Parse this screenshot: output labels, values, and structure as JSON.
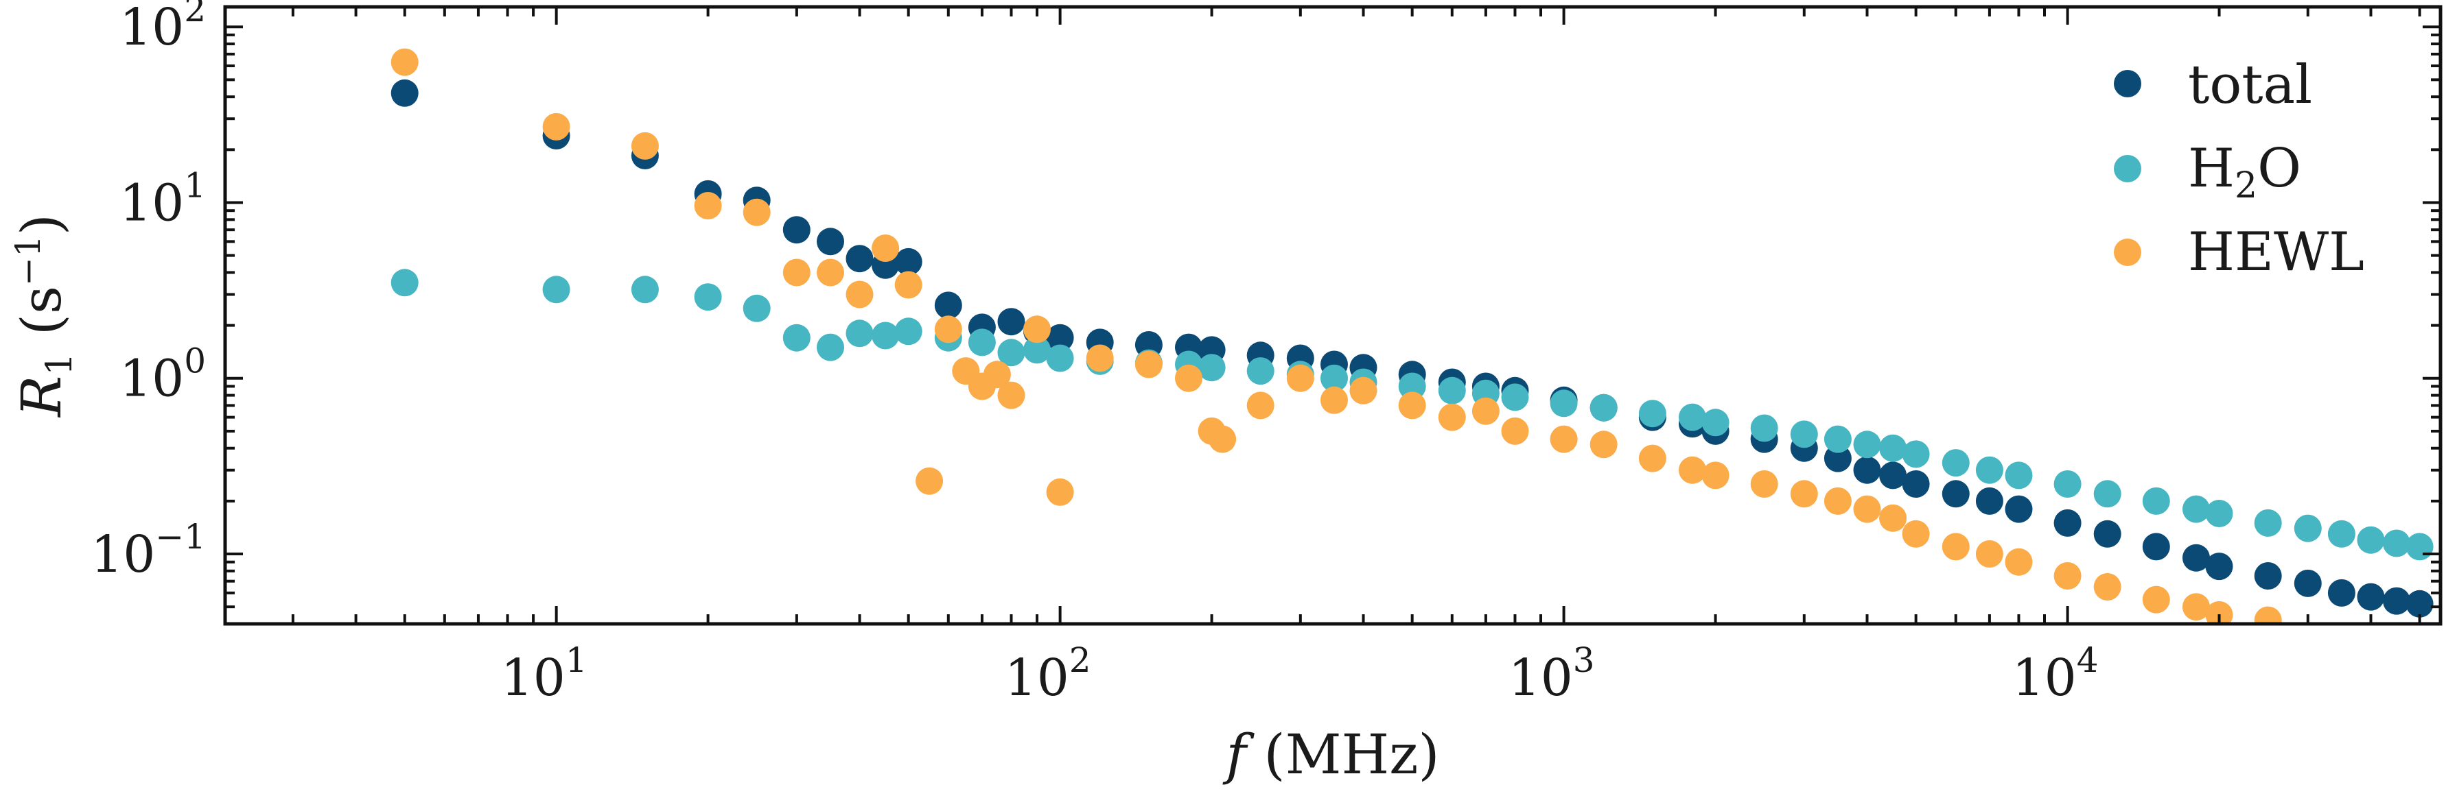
{
  "chart_data": {
    "type": "scatter",
    "title": "",
    "xlabel": "f (MHz)",
    "ylabel": "R1 (s−1)",
    "xlabel_parts": {
      "symbol": "f",
      "unit": " (MHz)"
    },
    "ylabel_parts": {
      "symbol": "R",
      "subscript": "1",
      "open": " (s",
      "superscript": "−1",
      "close": ")"
    },
    "xscale": "log",
    "yscale": "log",
    "xlim": [
      2.2,
      55000
    ],
    "ylim": [
      0.04,
      130
    ],
    "grid": false,
    "legend_position": "top-right",
    "x_ticks": [
      {
        "value": 10,
        "base": "10",
        "exp": "1"
      },
      {
        "value": 100,
        "base": "10",
        "exp": "2"
      },
      {
        "value": 1000,
        "base": "10",
        "exp": "3"
      },
      {
        "value": 10000,
        "base": "10",
        "exp": "4"
      }
    ],
    "y_ticks": [
      {
        "value": 0.1,
        "base": "10",
        "exp": "−1"
      },
      {
        "value": 1,
        "base": "10",
        "exp": "0"
      },
      {
        "value": 10,
        "base": "10",
        "exp": "1"
      },
      {
        "value": 100,
        "base": "10",
        "exp": "2"
      }
    ],
    "series": [
      {
        "name": "total",
        "label": "total",
        "color": "#0b4a75",
        "x": [
          5,
          10,
          15,
          20,
          25,
          30,
          35,
          40,
          45,
          50,
          60,
          70,
          80,
          90,
          100,
          120,
          150,
          180,
          200,
          250,
          300,
          350,
          400,
          500,
          600,
          700,
          800,
          1000,
          1200,
          1500,
          1800,
          2000,
          2500,
          3000,
          3500,
          4000,
          4500,
          5000,
          6000,
          7000,
          8000,
          10000,
          12000,
          15000,
          18000,
          20000,
          25000,
          30000,
          35000,
          40000,
          45000,
          50000
        ],
        "y": [
          42,
          24,
          18.5,
          11.2,
          10.3,
          7.0,
          6.0,
          4.8,
          4.4,
          4.6,
          2.6,
          1.95,
          2.1,
          1.85,
          1.7,
          1.6,
          1.55,
          1.5,
          1.45,
          1.35,
          1.3,
          1.2,
          1.15,
          1.05,
          0.95,
          0.9,
          0.85,
          0.75,
          0.68,
          0.6,
          0.55,
          0.5,
          0.45,
          0.4,
          0.35,
          0.3,
          0.28,
          0.25,
          0.22,
          0.2,
          0.18,
          0.15,
          0.13,
          0.11,
          0.095,
          0.085,
          0.075,
          0.068,
          0.06,
          0.057,
          0.054,
          0.052
        ]
      },
      {
        "name": "H2O",
        "label": "H",
        "label_sub": "2",
        "label_tail": "O",
        "color": "#46b6c2",
        "x": [
          5,
          10,
          15,
          20,
          25,
          30,
          35,
          40,
          45,
          50,
          60,
          70,
          80,
          90,
          100,
          120,
          150,
          180,
          200,
          250,
          300,
          350,
          400,
          500,
          600,
          700,
          800,
          1000,
          1200,
          1500,
          1800,
          2000,
          2500,
          3000,
          3500,
          4000,
          4500,
          5000,
          6000,
          7000,
          8000,
          10000,
          12000,
          15000,
          18000,
          20000,
          25000,
          30000,
          35000,
          40000,
          45000,
          50000
        ],
        "y": [
          3.5,
          3.2,
          3.2,
          2.9,
          2.5,
          1.7,
          1.5,
          1.8,
          1.75,
          1.85,
          1.7,
          1.6,
          1.4,
          1.45,
          1.3,
          1.25,
          1.22,
          1.2,
          1.15,
          1.1,
          1.05,
          1.0,
          0.95,
          0.9,
          0.85,
          0.82,
          0.78,
          0.72,
          0.68,
          0.63,
          0.6,
          0.56,
          0.52,
          0.48,
          0.45,
          0.42,
          0.4,
          0.37,
          0.33,
          0.3,
          0.28,
          0.25,
          0.22,
          0.2,
          0.18,
          0.17,
          0.15,
          0.14,
          0.13,
          0.12,
          0.115,
          0.11
        ]
      },
      {
        "name": "HEWL",
        "label": "HEWL",
        "color": "#fbab47",
        "x": [
          5,
          10,
          15,
          20,
          25,
          30,
          35,
          40,
          45,
          50,
          55,
          60,
          65,
          70,
          75,
          80,
          90,
          100,
          120,
          150,
          180,
          200,
          210,
          250,
          300,
          350,
          400,
          500,
          600,
          700,
          800,
          1000,
          1200,
          1500,
          1800,
          2000,
          2500,
          3000,
          3500,
          4000,
          4500,
          5000,
          6000,
          7000,
          8000,
          10000,
          12000,
          15000,
          18000,
          20000,
          25000
        ],
        "y": [
          63,
          27,
          21,
          9.6,
          8.8,
          4.0,
          4.0,
          3.0,
          5.5,
          3.4,
          0.26,
          1.9,
          1.1,
          0.9,
          1.05,
          0.8,
          1.9,
          0.225,
          1.3,
          1.2,
          1.0,
          0.5,
          0.45,
          0.7,
          1.0,
          0.75,
          0.85,
          0.7,
          0.6,
          0.65,
          0.5,
          0.45,
          0.42,
          0.35,
          0.3,
          0.28,
          0.25,
          0.22,
          0.2,
          0.18,
          0.16,
          0.13,
          0.11,
          0.1,
          0.09,
          0.075,
          0.065,
          0.055,
          0.05,
          0.045,
          0.042
        ]
      }
    ]
  }
}
